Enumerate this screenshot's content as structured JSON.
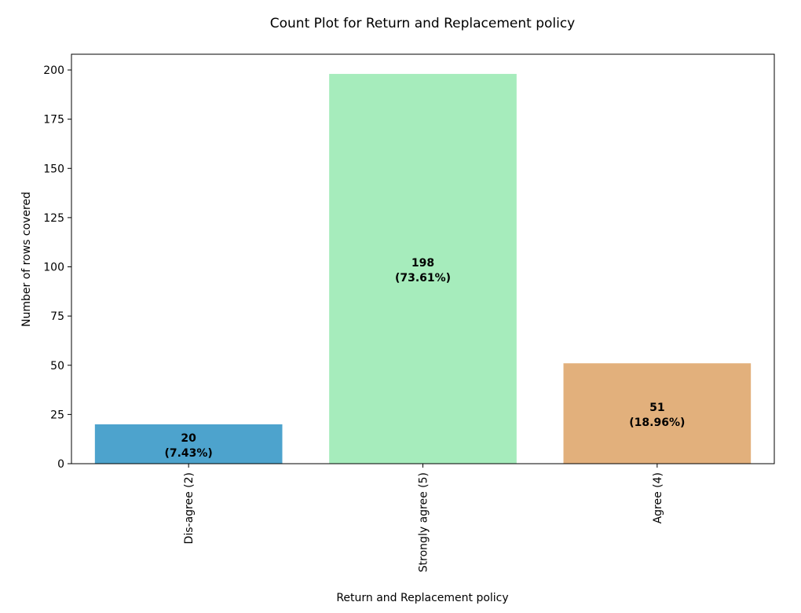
{
  "chart_data": {
    "type": "bar",
    "title": "Count Plot for Return and Replacement policy",
    "xlabel": "Return and Replacement policy",
    "ylabel": "Number of rows covered",
    "categories": [
      "Dis-agree (2)",
      "Strongly agree (5)",
      "Agree (4)"
    ],
    "values": [
      20,
      198,
      51
    ],
    "value_labels": [
      "20",
      "198",
      "51"
    ],
    "percent_labels": [
      "(7.43%)",
      "(73.61%)",
      "(18.96%)"
    ],
    "colors": [
      "#4da3cd",
      "#a6ecbc",
      "#e2b07c"
    ],
    "ylim": [
      0,
      208
    ],
    "yticks": [
      0,
      25,
      50,
      75,
      100,
      125,
      150,
      175,
      200
    ],
    "grid": false,
    "legend": "none"
  }
}
